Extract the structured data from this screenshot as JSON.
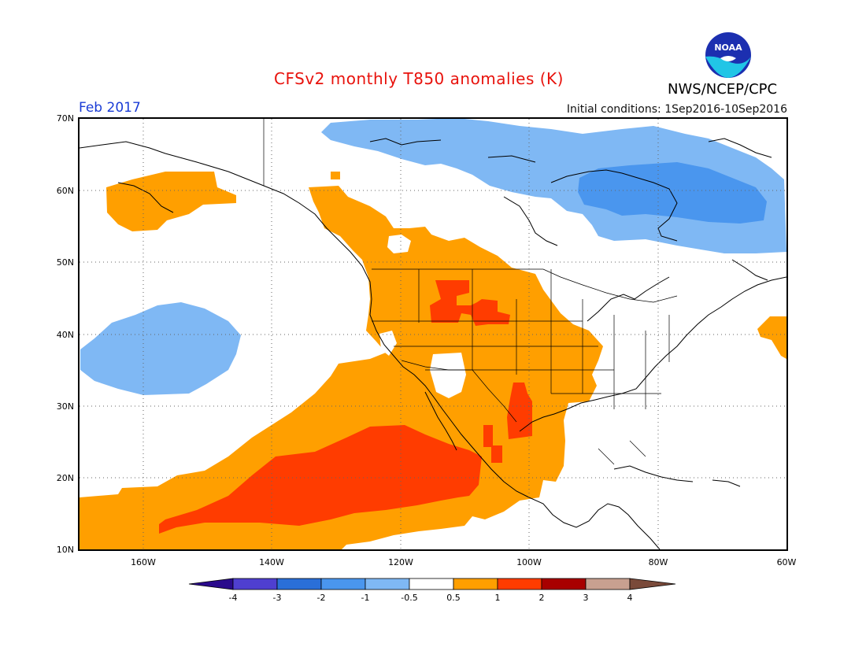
{
  "header": {
    "title": "CFSv2 monthly T850 anomalies (K)",
    "agency": "NWS/NCEP/CPC",
    "valid_month": "Feb 2017",
    "initial_conditions": "Initial conditions: 1Sep2016-10Sep2016",
    "logo_text": "NOAA"
  },
  "map": {
    "lat_labels": [
      "70N",
      "60N",
      "50N",
      "40N",
      "30N",
      "20N",
      "10N"
    ],
    "lon_labels": [
      "160W",
      "140W",
      "120W",
      "100W",
      "80W",
      "60W"
    ],
    "lat_range": [
      10,
      70
    ],
    "lon_range": [
      -170,
      -60
    ],
    "grid": true,
    "lat_values": [
      70,
      60,
      50,
      40,
      30,
      20,
      10
    ],
    "lon_values": [
      -160,
      -140,
      -120,
      -100,
      -80,
      -60
    ]
  },
  "legend": {
    "thresholds": [
      "-4",
      "-3",
      "-2",
      "-1",
      "-0.5",
      "0.5",
      "1",
      "2",
      "3",
      "4"
    ],
    "colors": [
      "#2a0a8c",
      "#4f3fd0",
      "#2a6fd8",
      "#4a96ee",
      "#7fb8f4",
      "#ffffff",
      "#ff9f00",
      "#ff3c00",
      "#a80000",
      "#c8a090",
      "#7a4a3a"
    ]
  },
  "colors": {
    "warm1": "#ff9f00",
    "warm2": "#ff3c00",
    "cool1": "#7fb8f4",
    "cool2": "#4a96ee",
    "title": "#e8120c",
    "date": "#1a3cd6"
  }
}
